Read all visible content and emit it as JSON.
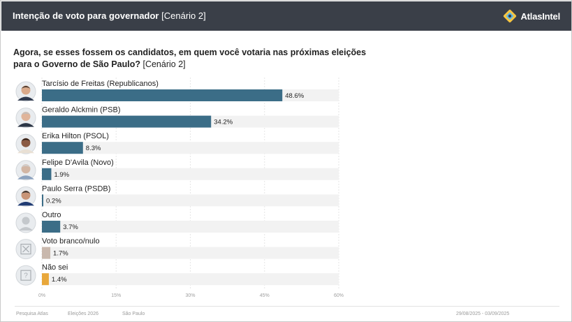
{
  "header": {
    "title": "Intenção de voto para governador",
    "subtitle": "[Cenário 2]",
    "brand": "AtlasIntel"
  },
  "question": {
    "text": "Agora, se esses fossem os candidatos, em quem você votaria nas próximas eleições para o Governo de São Paulo?",
    "suffix": "[Cenário 2]"
  },
  "chart_data": {
    "type": "bar",
    "orientation": "horizontal",
    "categories": [
      "Tarcísio de Freitas (Republicanos)",
      "Geraldo Alckmin (PSB)",
      "Erika Hilton (PSOL)",
      "Felipe D'Avila (Novo)",
      "Paulo Serra (PSDB)",
      "Outro",
      "Voto branco/nulo",
      "Não sei"
    ],
    "values": [
      48.6,
      34.2,
      8.3,
      1.9,
      0.2,
      3.7,
      1.7,
      1.4
    ],
    "value_labels": [
      "48.6%",
      "34.2%",
      "8.3%",
      "1.9%",
      "0.2%",
      "3.7%",
      "1.7%",
      "1.4%"
    ],
    "bar_colors": [
      "#3b6d87",
      "#3b6d87",
      "#3b6d87",
      "#3b6d87",
      "#3b6d87",
      "#3b6d87",
      "#c9b8ad",
      "#e8a73a"
    ],
    "avatar_icons": [
      "person-photo-icon",
      "person-photo-icon",
      "person-photo-icon",
      "person-photo-icon",
      "person-photo-icon",
      "generic-person-icon",
      "x-box-icon",
      "question-box-icon"
    ],
    "xlim": [
      0,
      60
    ],
    "xticks": [
      "0%",
      "15%",
      "30%",
      "45%",
      "60%"
    ],
    "track_color": "#f2f2f2"
  },
  "footer": {
    "source": "Pesquisa Atlas",
    "election": "Eleições 2026",
    "place": "São Paulo",
    "dates": "29/08/2025 - 03/09/2025"
  }
}
